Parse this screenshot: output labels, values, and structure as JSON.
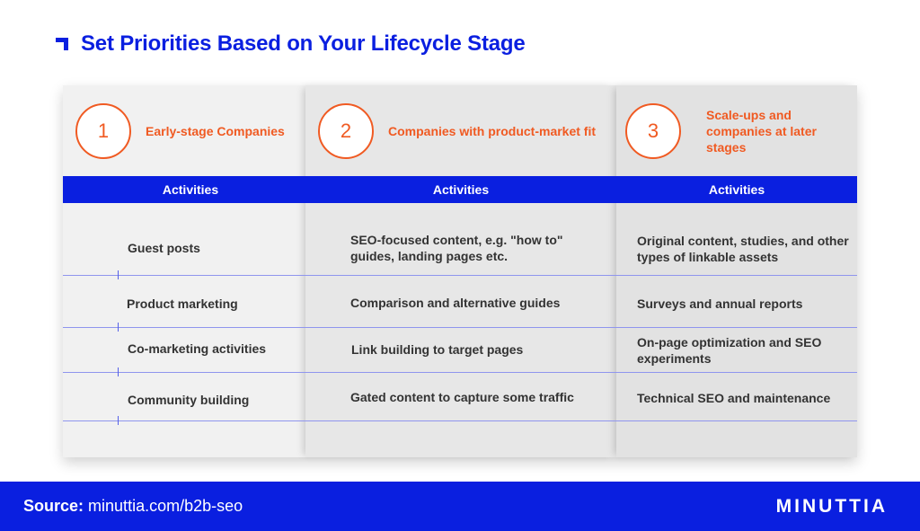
{
  "title": "Set Priorities Based on Your Lifecycle Stage",
  "colors": {
    "brand_blue": "#0a1fe0",
    "accent_orange": "#f05a22"
  },
  "stages": [
    {
      "number": "1",
      "label": "Early-stage Companies",
      "activities_header": "Activities",
      "activities": [
        "Guest posts",
        "Product marketing",
        "Co-marketing activities",
        "Community building"
      ]
    },
    {
      "number": "2",
      "label": "Companies with product-market fit",
      "activities_header": "Activities",
      "activities": [
        "SEO-focused content, e.g. \"how to\" guides, landing pages etc.",
        "Comparison and alternative guides",
        "Link building to target pages",
        "Gated content to capture some traffic"
      ]
    },
    {
      "number": "3",
      "label": "Scale-ups and companies at later stages",
      "activities_header": "Activities",
      "activities": [
        "Original content, studies, and other types of linkable assets",
        "Surveys and annual reports",
        "On-page optimization and SEO experiments",
        "Technical SEO and maintenance"
      ]
    }
  ],
  "footer": {
    "source_label": "Source:",
    "source_url": "minuttia.com/b2b-seo",
    "logo_text": "MINUTTIA"
  }
}
